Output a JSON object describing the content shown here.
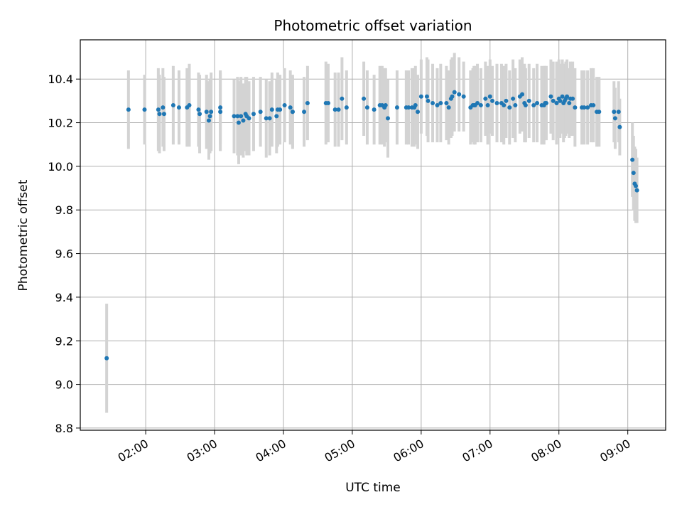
{
  "chart_data": {
    "type": "scatter",
    "title": "Photometric offset variation",
    "xlabel": "UTC time",
    "ylabel": "Photometric offset",
    "x_tick_labels": [
      "02:00",
      "03:00",
      "04:00",
      "05:00",
      "06:00",
      "07:00",
      "08:00",
      "09:00"
    ],
    "y_tick_labels": [
      "8.8",
      "9.0",
      "9.2",
      "9.4",
      "9.6",
      "9.8",
      "10.0",
      "10.2",
      "10.4"
    ],
    "xlim": [
      "01:03",
      "09:33"
    ],
    "ylim": [
      8.79,
      10.58
    ],
    "grid": true,
    "point_color": "#1f77b4",
    "errorbar_color": "#d3d3d3",
    "series": [
      {
        "x": [
          "01:26",
          "01:45",
          "01:59",
          "02:11",
          "02:12",
          "02:15",
          "02:16",
          "02:24",
          "02:29",
          "02:36",
          "02:38",
          "02:46",
          "02:47",
          "02:53",
          "02:55",
          "02:56",
          "02:57",
          "03:05",
          "03:05",
          "03:17",
          "03:20",
          "03:21",
          "03:23",
          "03:25",
          "03:27",
          "03:28",
          "03:30",
          "03:34",
          "03:40",
          "03:45",
          "03:48",
          "03:50",
          "03:54",
          "03:55",
          "03:57",
          "04:01",
          "04:06",
          "04:08",
          "04:08",
          "04:18",
          "04:21",
          "04:37",
          "04:39",
          "04:45",
          "04:48",
          "04:51",
          "04:55",
          "05:10",
          "05:13",
          "05:19",
          "05:24",
          "05:26",
          "05:28",
          "05:29",
          "05:31",
          "05:39",
          "05:47",
          "05:49",
          "05:52",
          "05:54",
          "05:55",
          "05:57",
          "06:00",
          "06:05",
          "06:06",
          "06:10",
          "06:14",
          "06:17",
          "06:22",
          "06:24",
          "06:26",
          "06:27",
          "06:29",
          "06:33",
          "06:37",
          "06:43",
          "06:45",
          "06:46",
          "06:47",
          "06:49",
          "06:52",
          "06:56",
          "06:58",
          "07:00",
          "07:02",
          "07:06",
          "07:10",
          "07:12",
          "07:14",
          "07:17",
          "07:20",
          "07:22",
          "07:26",
          "07:28",
          "07:30",
          "07:31",
          "07:34",
          "07:38",
          "07:41",
          "07:45",
          "07:47",
          "07:48",
          "07:49",
          "07:53",
          "07:55",
          "07:58",
          "08:00",
          "08:01",
          "08:03",
          "08:04",
          "08:05",
          "08:06",
          "08:07",
          "08:09",
          "08:10",
          "08:12",
          "08:14",
          "08:20",
          "08:22",
          "08:25",
          "08:28",
          "08:30",
          "08:33",
          "08:35",
          "08:48",
          "08:49",
          "08:52",
          "08:53",
          "09:04",
          "09:05",
          "09:06",
          "09:07",
          "09:08"
        ],
        "y": [
          9.12,
          10.26,
          10.26,
          10.26,
          10.24,
          10.27,
          10.24,
          10.28,
          10.27,
          10.27,
          10.28,
          10.26,
          10.24,
          10.25,
          10.21,
          10.23,
          10.25,
          10.25,
          10.27,
          10.23,
          10.23,
          10.2,
          10.23,
          10.21,
          10.24,
          10.23,
          10.22,
          10.24,
          10.25,
          10.22,
          10.22,
          10.26,
          10.23,
          10.26,
          10.26,
          10.28,
          10.27,
          10.25,
          10.25,
          10.25,
          10.29,
          10.29,
          10.29,
          10.26,
          10.26,
          10.31,
          10.27,
          10.31,
          10.27,
          10.26,
          10.28,
          10.28,
          10.27,
          10.28,
          10.22,
          10.27,
          10.27,
          10.27,
          10.27,
          10.27,
          10.28,
          10.25,
          10.32,
          10.32,
          10.3,
          10.29,
          10.28,
          10.29,
          10.29,
          10.27,
          10.31,
          10.32,
          10.34,
          10.33,
          10.32,
          10.27,
          10.28,
          10.28,
          10.28,
          10.29,
          10.28,
          10.31,
          10.28,
          10.32,
          10.3,
          10.29,
          10.29,
          10.28,
          10.3,
          10.27,
          10.31,
          10.28,
          10.32,
          10.33,
          10.29,
          10.28,
          10.3,
          10.28,
          10.29,
          10.28,
          10.28,
          10.29,
          10.29,
          10.32,
          10.3,
          10.29,
          10.31,
          10.3,
          10.32,
          10.29,
          10.3,
          10.31,
          10.32,
          10.29,
          10.31,
          10.31,
          10.27,
          10.27,
          10.27,
          10.27,
          10.28,
          10.28,
          10.25,
          10.25,
          10.25,
          10.22,
          10.25,
          10.18,
          10.03,
          9.97,
          9.92,
          9.91,
          9.89
        ],
        "err": [
          0.25,
          0.18,
          0.16,
          0.19,
          0.18,
          0.18,
          0.17,
          0.18,
          0.17,
          0.18,
          0.19,
          0.17,
          0.18,
          0.17,
          0.18,
          0.17,
          0.18,
          0.18,
          0.17,
          0.17,
          0.18,
          0.19,
          0.18,
          0.17,
          0.17,
          0.18,
          0.17,
          0.17,
          0.16,
          0.18,
          0.17,
          0.17,
          0.17,
          0.17,
          0.16,
          0.17,
          0.17,
          0.17,
          0.16,
          0.16,
          0.17,
          0.19,
          0.18,
          0.17,
          0.17,
          0.19,
          0.17,
          0.17,
          0.17,
          0.16,
          0.18,
          0.18,
          0.18,
          0.17,
          0.18,
          0.17,
          0.17,
          0.17,
          0.18,
          0.18,
          0.18,
          0.17,
          0.17,
          0.18,
          0.19,
          0.18,
          0.17,
          0.18,
          0.17,
          0.17,
          0.18,
          0.18,
          0.18,
          0.17,
          0.16,
          0.17,
          0.17,
          0.18,
          0.18,
          0.18,
          0.17,
          0.17,
          0.18,
          0.17,
          0.16,
          0.18,
          0.18,
          0.18,
          0.17,
          0.17,
          0.18,
          0.17,
          0.17,
          0.17,
          0.18,
          0.17,
          0.17,
          0.17,
          0.18,
          0.18,
          0.18,
          0.17,
          0.17,
          0.17,
          0.18,
          0.19,
          0.18,
          0.17,
          0.17,
          0.18,
          0.17,
          0.17,
          0.17,
          0.16,
          0.17,
          0.17,
          0.18,
          0.17,
          0.17,
          0.17,
          0.17,
          0.17,
          0.16,
          0.16,
          0.14,
          0.14,
          0.14,
          0.13,
          0.17,
          0.17,
          0.17,
          0.17,
          0.15
        ]
      }
    ]
  }
}
